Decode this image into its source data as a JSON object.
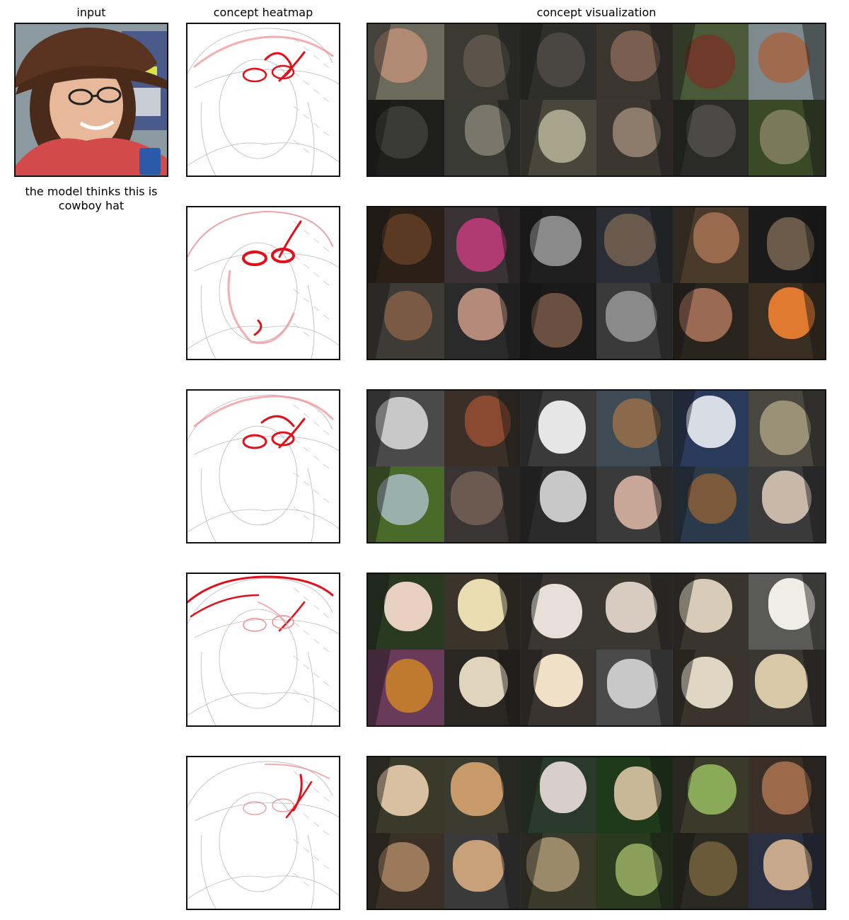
{
  "figure": {
    "columns": {
      "input": "input",
      "heatmap": "concept heatmap",
      "visualization": "concept visualization"
    },
    "caption_line1": "the model thinks this is",
    "caption_line2": "cowboy hat"
  },
  "rows": [
    {
      "heat_focus": "hat-brim-and-glasses",
      "tiles": [
        {
          "bg": "#6b6a5c",
          "fg": "#b08a72"
        },
        {
          "bg": "#3a3a32",
          "fg": "#5c544a"
        },
        {
          "bg": "#2e2e2a",
          "fg": "#4a4642"
        },
        {
          "bg": "#3b3530",
          "fg": "#7a5e50"
        },
        {
          "bg": "#4a5a38",
          "fg": "#6e3a2a"
        },
        {
          "bg": "#7e8a8e",
          "fg": "#a06a4e"
        },
        {
          "bg": "#1e1e1c",
          "fg": "#3a3a38"
        },
        {
          "bg": "#3a3a34",
          "fg": "#7a766a"
        },
        {
          "bg": "#4a463c",
          "fg": "#a8a48c"
        },
        {
          "bg": "#3c3630",
          "fg": "#8c7a6a"
        },
        {
          "bg": "#2a2a28",
          "fg": "#4c4a48"
        },
        {
          "bg": "#3a4a26",
          "fg": "#7a7a5a"
        }
      ]
    },
    {
      "heat_focus": "face-and-glasses",
      "tiles": [
        {
          "bg": "#2a2018",
          "fg": "#5a3a22"
        },
        {
          "bg": "#3a3234",
          "fg": "#b03a72"
        },
        {
          "bg": "#1e1e1e",
          "fg": "#8a8a8a"
        },
        {
          "bg": "#2a2e34",
          "fg": "#6a5a4e"
        },
        {
          "bg": "#4a3a2a",
          "fg": "#9a6a4e"
        },
        {
          "bg": "#1a1a1a",
          "fg": "#6a5a4a"
        },
        {
          "bg": "#3e3a36",
          "fg": "#7a5a44"
        },
        {
          "bg": "#2a2a2a",
          "fg": "#b48a7a"
        },
        {
          "bg": "#1a1a1a",
          "fg": "#6a5040"
        },
        {
          "bg": "#3a3a3a",
          "fg": "#8a8a8a"
        },
        {
          "bg": "#2a241e",
          "fg": "#9a6a52"
        },
        {
          "bg": "#3a2e22",
          "fg": "#e07a30"
        }
      ]
    },
    {
      "heat_focus": "hat-crown-and-glasses",
      "tiles": [
        {
          "bg": "#4a4a4a",
          "fg": "#c8c8c8"
        },
        {
          "bg": "#3a3028",
          "fg": "#8a4a32"
        },
        {
          "bg": "#3a3a3a",
          "fg": "#e6e6e6"
        },
        {
          "bg": "#3e4a54",
          "fg": "#8a6a4a"
        },
        {
          "bg": "#2a3a5a",
          "fg": "#d8dce4"
        },
        {
          "bg": "#4a4640",
          "fg": "#9a9276"
        },
        {
          "bg": "#4a6a2a",
          "fg": "#9ab0aa"
        },
        {
          "bg": "#3a3434",
          "fg": "#6a5a50"
        },
        {
          "bg": "#2a2a2a",
          "fg": "#c8c8c8"
        },
        {
          "bg": "#3a3a3a",
          "fg": "#c8a698"
        },
        {
          "bg": "#2a3a4a",
          "fg": "#7a5a3a"
        },
        {
          "bg": "#3a3a3a",
          "fg": "#c8b8a8"
        }
      ]
    },
    {
      "heat_focus": "hat-brim",
      "tiles": [
        {
          "bg": "#2a3a22",
          "fg": "#e8d0c0"
        },
        {
          "bg": "#3a342a",
          "fg": "#e8dcb0"
        },
        {
          "bg": "#3a3632",
          "fg": "#e8e0d8"
        },
        {
          "bg": "#3a3630",
          "fg": "#d8ccc0"
        },
        {
          "bg": "#3a342e",
          "fg": "#d8ccb8"
        },
        {
          "bg": "#5a5a58",
          "fg": "#f0ece6"
        },
        {
          "bg": "#6a3a5a",
          "fg": "#c07a30"
        },
        {
          "bg": "#2a2622",
          "fg": "#e0d4bc"
        },
        {
          "bg": "#3a3430",
          "fg": "#f0e0c8"
        },
        {
          "bg": "#4a4a4a",
          "fg": "#c8c8c8"
        },
        {
          "bg": "#3a342c",
          "fg": "#e0d6c4"
        },
        {
          "bg": "#3a3632",
          "fg": "#d8c8a8"
        }
      ]
    },
    {
      "heat_focus": "hat-edge",
      "tiles": [
        {
          "bg": "#3a3a2a",
          "fg": "#d8c0a0"
        },
        {
          "bg": "#3a3a2e",
          "fg": "#c89a6a"
        },
        {
          "bg": "#2a3a2a",
          "fg": "#d8d0c8"
        },
        {
          "bg": "#1e3a1a",
          "fg": "#c8b898"
        },
        {
          "bg": "#3a3a2a",
          "fg": "#8aaa5a"
        },
        {
          "bg": "#3a3028",
          "fg": "#9a6a4a"
        },
        {
          "bg": "#3a3026",
          "fg": "#9a7a5a"
        },
        {
          "bg": "#3a3a3a",
          "fg": "#c8a07a"
        },
        {
          "bg": "#3a3a2a",
          "fg": "#9a8a6a"
        },
        {
          "bg": "#2a3a1e",
          "fg": "#8aa05a"
        },
        {
          "bg": "#2a2a22",
          "fg": "#6a5a3a"
        },
        {
          "bg": "#2a3040",
          "fg": "#c8a88a"
        }
      ]
    }
  ]
}
